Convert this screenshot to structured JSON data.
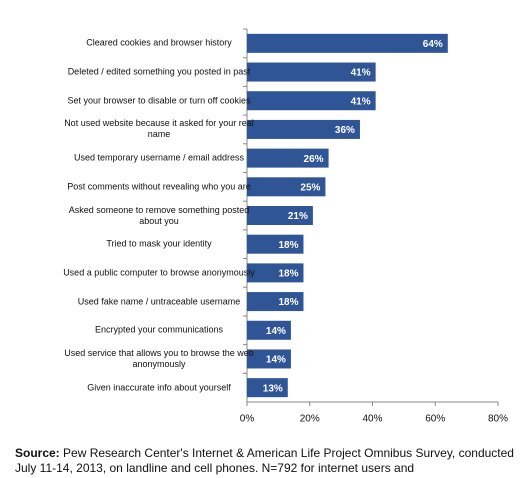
{
  "chart_data": {
    "type": "barh",
    "categories": [
      "Cleared cookies and browser history",
      "Deleted / edited something you posted in past",
      "Set your browser to disable or turn off cookies",
      "Not used website because it asked for your real name",
      "Used temporary username / email address",
      "Post comments without revealing who you are",
      "Asked someone to remove something posted about you",
      "Tried to mask your identity",
      "Used a public computer to browse anonymously",
      "Used fake name / untraceable username",
      "Encrypted your communications",
      "Used service that allows you to browse the web anonymously",
      "Given inaccurate info about yourself"
    ],
    "values": [
      64,
      41,
      41,
      36,
      26,
      25,
      21,
      18,
      18,
      18,
      14,
      14,
      13
    ],
    "value_labels": [
      "64%",
      "41%",
      "41%",
      "36%",
      "26%",
      "25%",
      "21%",
      "18%",
      "18%",
      "18%",
      "14%",
      "14%",
      "13%"
    ],
    "color": "#2f5597",
    "xlim": [
      0,
      80
    ],
    "xticks": [
      {
        "value": 0,
        "label": "0%"
      },
      {
        "value": 20,
        "label": "20%"
      },
      {
        "value": 40,
        "label": "40%"
      },
      {
        "value": 60,
        "label": "60%"
      },
      {
        "value": 80,
        "label": "80%"
      }
    ],
    "source_label": "Source:",
    "source_text": "Pew Research Center's Internet & American Life Project  Omnibus Survey, conducted July 11-14, 2013, on landline and cell phones. N=792 for internet users and"
  }
}
